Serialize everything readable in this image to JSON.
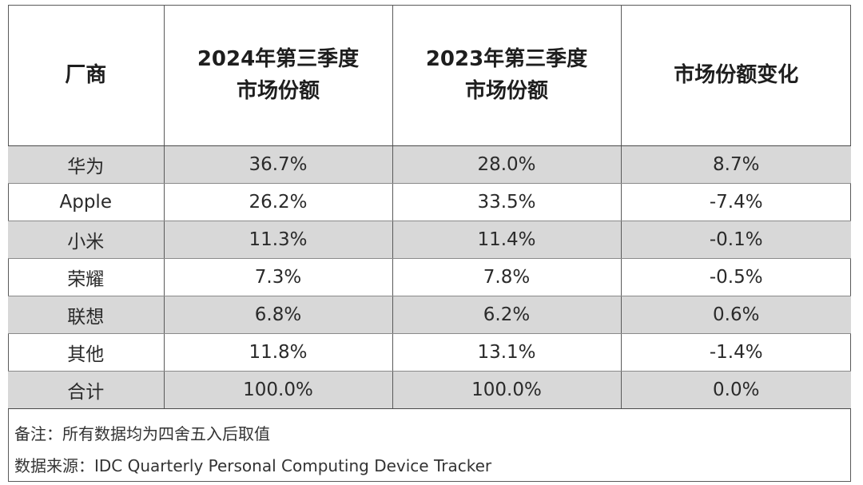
{
  "table": {
    "headers": [
      "厂商",
      "2024年第三季度\n市场份额",
      "2023年第三季度\n市场份额",
      "市场份额变化"
    ],
    "rows": [
      {
        "vendor": "华为",
        "q3_2024": "36.7%",
        "q3_2023": "28.0%",
        "change": "8.7%"
      },
      {
        "vendor": "Apple",
        "q3_2024": "26.2%",
        "q3_2023": "33.5%",
        "change": "-7.4%"
      },
      {
        "vendor": "小米",
        "q3_2024": "11.3%",
        "q3_2023": "11.4%",
        "change": "-0.1%"
      },
      {
        "vendor": "荣耀",
        "q3_2024": "7.3%",
        "q3_2023": "7.8%",
        "change": "-0.5%"
      },
      {
        "vendor": "联想",
        "q3_2024": "6.8%",
        "q3_2023": "6.2%",
        "change": "0.6%"
      },
      {
        "vendor": "其他",
        "q3_2024": "11.8%",
        "q3_2023": "13.1%",
        "change": "-1.4%"
      },
      {
        "vendor": "合计",
        "q3_2024": "100.0%",
        "q3_2023": "100.0%",
        "change": "0.0%"
      }
    ]
  },
  "notes": {
    "remark": "备注：所有数据均为四舍五入后取值",
    "source": "数据来源：IDC Quarterly Personal Computing Device Tracker"
  },
  "colors": {
    "shaded_row": "#d8d8d8",
    "border": "#5a5a5a",
    "text": "#222222"
  }
}
